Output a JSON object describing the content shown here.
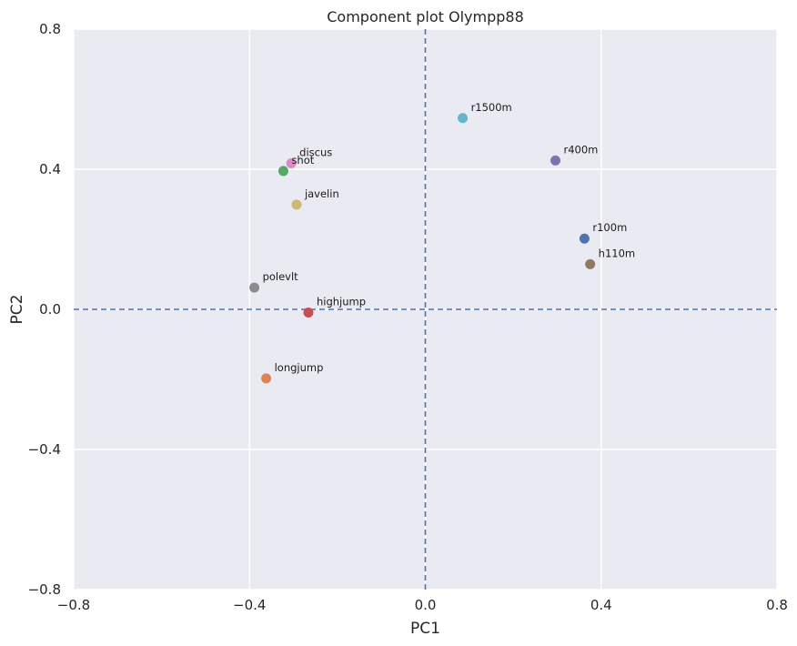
{
  "chart_data": {
    "type": "scatter",
    "title": "Component plot Olympp88",
    "xlabel": "PC1",
    "ylabel": "PC2",
    "xlim": [
      -0.8,
      0.8
    ],
    "ylim": [
      -0.8,
      0.8
    ],
    "xticks": [
      -0.8,
      -0.4,
      0.0,
      0.4,
      0.8
    ],
    "yticks": [
      -0.8,
      -0.4,
      0.0,
      0.4,
      0.8
    ],
    "xtick_labels": [
      "−0.8",
      "−0.4",
      "0.0",
      "0.4",
      "0.8"
    ],
    "ytick_labels": [
      "−0.8",
      "−0.4",
      "0.0",
      "0.4",
      "0.8"
    ],
    "grid": true,
    "reference_lines": {
      "x": 0.0,
      "y": 0.0,
      "style": "dashed",
      "color": "#4c72b0"
    },
    "background_color": "#eaeaf2",
    "points": [
      {
        "label": "r100m",
        "x": 0.362,
        "y": 0.202,
        "color": "#4c72b0"
      },
      {
        "label": "longjump",
        "x": -0.362,
        "y": -0.197,
        "color": "#dd8452"
      },
      {
        "label": "shot",
        "x": -0.323,
        "y": 0.395,
        "color": "#55a868"
      },
      {
        "label": "highjump",
        "x": -0.266,
        "y": -0.009,
        "color": "#c44e52"
      },
      {
        "label": "r400m",
        "x": 0.296,
        "y": 0.425,
        "color": "#8172b3"
      },
      {
        "label": "h110m",
        "x": 0.375,
        "y": 0.129,
        "color": "#937860"
      },
      {
        "label": "discus",
        "x": -0.305,
        "y": 0.417,
        "color": "#da8bc3"
      },
      {
        "label": "polevlt",
        "x": -0.389,
        "y": 0.062,
        "color": "#8c8c8c"
      },
      {
        "label": "javelin",
        "x": -0.293,
        "y": 0.299,
        "color": "#ccb974"
      },
      {
        "label": "r1500m",
        "x": 0.085,
        "y": 0.546,
        "color": "#64b5cd"
      }
    ]
  }
}
